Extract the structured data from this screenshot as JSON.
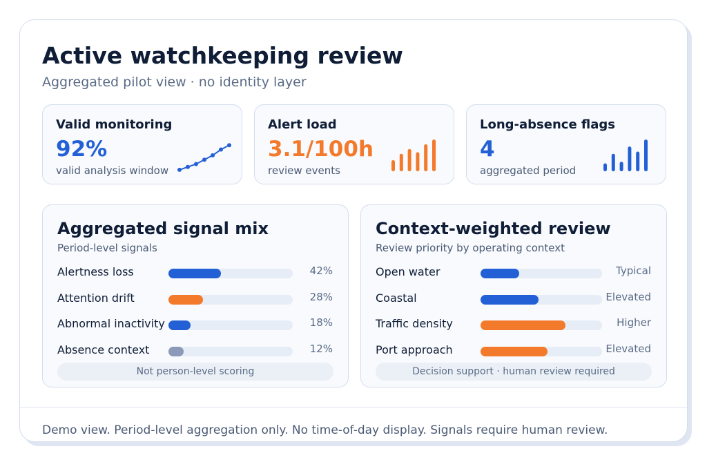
{
  "header": {
    "title": "Active watchkeeping review",
    "subtitle": "Aggregated pilot view · no identity layer"
  },
  "colors": {
    "blue": "#2360d6",
    "orange": "#f27a2a",
    "gray": "#8a9ab8",
    "navy": "#0f1d36"
  },
  "kpis": [
    {
      "label": "Valid monitoring",
      "value": "92%",
      "caption": "valid analysis window",
      "color": "#2360d6",
      "spark_type": "line-trend",
      "spark_levels": [
        0.05,
        0.15,
        0.25,
        0.4,
        0.55,
        0.75,
        0.9
      ]
    },
    {
      "label": "Alert load",
      "value": "3.1/100h",
      "caption": "review events",
      "color": "#f27a2a",
      "spark_type": "bars",
      "spark_levels": [
        0.35,
        0.55,
        0.7,
        0.6,
        0.85,
        1.0
      ]
    },
    {
      "label": "Long-absence flags",
      "value": "4",
      "caption": "aggregated period",
      "color": "#2360d6",
      "spark_type": "bars",
      "spark_levels": [
        0.25,
        0.55,
        0.3,
        0.78,
        0.62,
        1.0
      ]
    }
  ],
  "signal_mix": {
    "title": "Aggregated signal mix",
    "subtitle": "Period-level signals",
    "rows": [
      {
        "label": "Alertness loss",
        "value": "42%",
        "level": 0.42,
        "color": "#2360d6"
      },
      {
        "label": "Attention drift",
        "value": "28%",
        "level": 0.28,
        "color": "#f27a2a"
      },
      {
        "label": "Abnormal inactivity",
        "value": "18%",
        "level": 0.18,
        "color": "#2360d6"
      },
      {
        "label": "Absence context",
        "value": "12%",
        "level": 0.12,
        "color": "#8a9ab8"
      }
    ],
    "note": "Not person-level scoring"
  },
  "context_review": {
    "title": "Context-weighted review",
    "subtitle": "Review priority by operating context",
    "rows": [
      {
        "label": "Open water",
        "value": "Typical",
        "level": 0.32,
        "color": "#2360d6"
      },
      {
        "label": "Coastal",
        "value": "Elevated",
        "level": 0.48,
        "color": "#2360d6"
      },
      {
        "label": "Traffic density",
        "value": "Higher",
        "level": 0.7,
        "color": "#f27a2a"
      },
      {
        "label": "Port approach",
        "value": "Elevated",
        "level": 0.55,
        "color": "#f27a2a"
      }
    ],
    "note": "Decision support · human review required"
  },
  "footer": {
    "text": "Demo view. Period-level aggregation only. No time-of-day display. Signals require human review."
  }
}
